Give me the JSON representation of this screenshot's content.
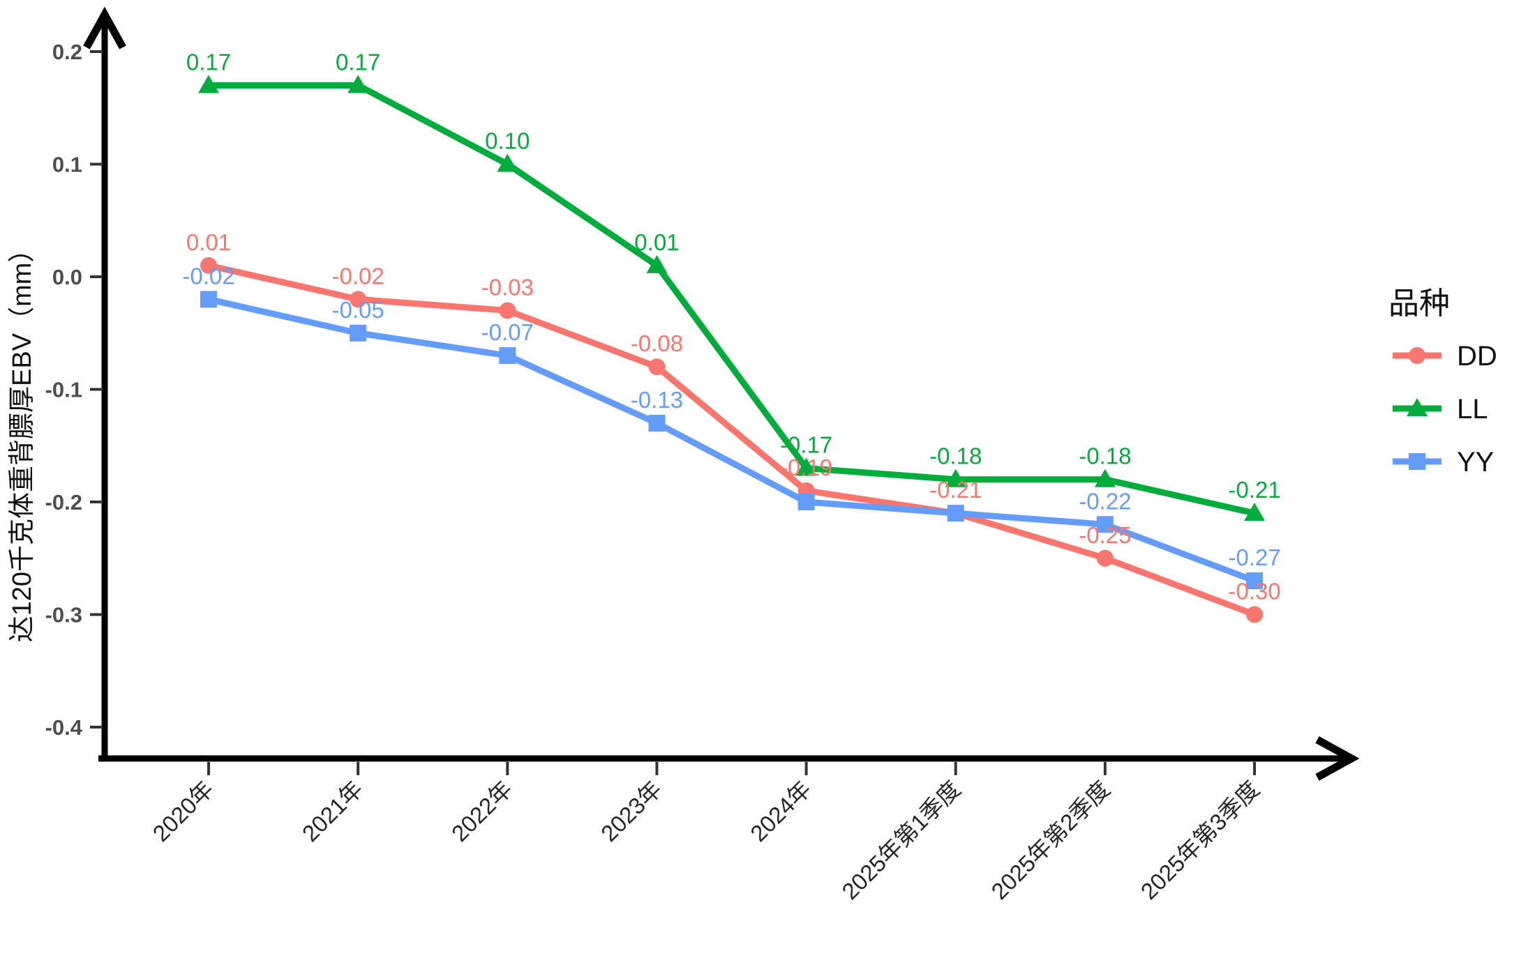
{
  "page": {
    "background": "#ffffff"
  },
  "chart_data": {
    "type": "line",
    "title": "",
    "xlabel": "",
    "ylabel": "达120千克体重背膘厚EBV（mm）",
    "categories": [
      "2020年",
      "2021年",
      "2022年",
      "2023年",
      "2024年",
      "2025年第1季度",
      "2025年第2季度",
      "2025年第3季度"
    ],
    "series": [
      {
        "name": "DD",
        "color": "#F8766D",
        "marker": "circle",
        "values": [
          0.01,
          -0.02,
          -0.03,
          -0.08,
          -0.19,
          -0.21,
          -0.25,
          -0.3
        ],
        "labels": [
          "0.01",
          "-0.02",
          "-0.03",
          "-0.08",
          "-0.19",
          "-0.21",
          "-0.25",
          "-0.30"
        ]
      },
      {
        "name": "LL",
        "color": "#00AC3B",
        "marker": "triangle",
        "values": [
          0.17,
          0.17,
          0.1,
          0.01,
          -0.17,
          -0.18,
          -0.18,
          -0.21
        ],
        "labels": [
          "0.17",
          "0.17",
          "0.10",
          "0.01",
          "-0.17",
          "-0.18",
          "-0.18",
          "-0.21"
        ]
      },
      {
        "name": "YY",
        "color": "#639CFA",
        "marker": "square",
        "values": [
          -0.02,
          -0.05,
          -0.07,
          -0.13,
          -0.2,
          -0.21,
          -0.22,
          -0.27
        ],
        "labels": [
          "-0.02",
          "-0.05",
          "-0.07",
          "-0.13",
          null,
          null,
          "-0.22",
          "-0.27"
        ]
      }
    ],
    "yticks": [
      0.2,
      0.1,
      0.0,
      -0.1,
      -0.2,
      -0.3,
      -0.4
    ],
    "ytick_labels": [
      "0.2",
      "0.1",
      "0.0",
      "-0.1",
      "-0.2",
      "-0.3",
      "-0.4"
    ],
    "ylim": [
      -0.45,
      0.235
    ],
    "grid": false,
    "legend": {
      "title": "品种",
      "position": "right",
      "entries": [
        "DD",
        "LL",
        "YY"
      ]
    },
    "colors": {
      "axis": "#000000",
      "tick": "#333333",
      "ytick_text": "#4d4d4d",
      "xtick_text": "#262626"
    }
  }
}
